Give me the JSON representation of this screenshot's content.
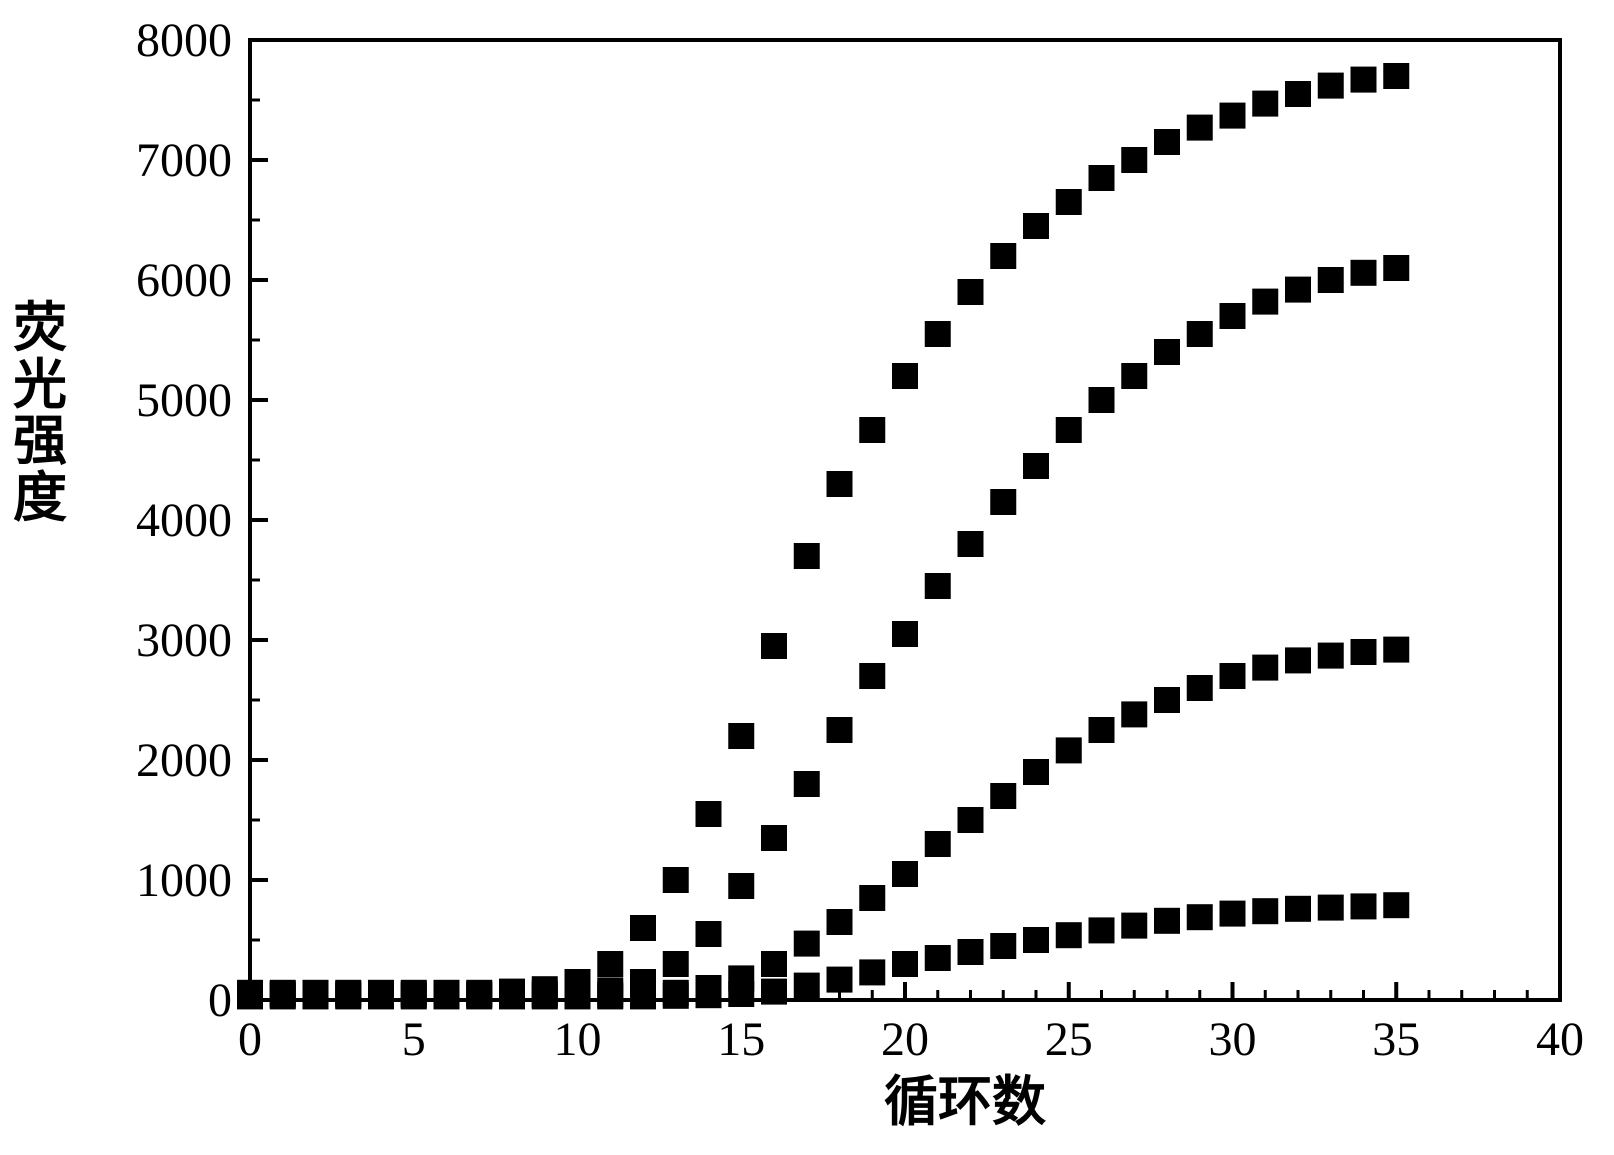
{
  "chart": {
    "type": "scatter",
    "background_color": "#ffffff",
    "plot_border_color": "#000000",
    "plot_border_width": 4,
    "marker": {
      "shape": "square",
      "size": 26,
      "color": "#000000"
    },
    "tick_label_fontsize": 48,
    "axis_title_fontsize": 54,
    "x": {
      "label": "循环数",
      "lim": [
        0,
        40
      ],
      "major_tick_step": 5,
      "minor_tick_step": 1,
      "ticks_labeled": [
        0,
        5,
        10,
        15,
        20,
        25,
        30,
        35,
        40
      ]
    },
    "y": {
      "label": "荧光强度",
      "lim": [
        0,
        8000
      ],
      "major_tick_step": 1000,
      "minor_tick_step": 500,
      "ticks_labeled": [
        0,
        1000,
        2000,
        3000,
        4000,
        5000,
        6000,
        7000,
        8000
      ]
    },
    "series": [
      {
        "name": "series-a",
        "color": "#000000",
        "points": [
          [
            0,
            60
          ],
          [
            1,
            60
          ],
          [
            2,
            60
          ],
          [
            3,
            60
          ],
          [
            4,
            60
          ],
          [
            5,
            60
          ],
          [
            6,
            60
          ],
          [
            7,
            60
          ],
          [
            8,
            70
          ],
          [
            9,
            90
          ],
          [
            10,
            150
          ],
          [
            11,
            300
          ],
          [
            12,
            600
          ],
          [
            13,
            1000
          ],
          [
            14,
            1550
          ],
          [
            15,
            2200
          ],
          [
            16,
            2950
          ],
          [
            17,
            3700
          ],
          [
            18,
            4300
          ],
          [
            19,
            4750
          ],
          [
            20,
            5200
          ],
          [
            21,
            5550
          ],
          [
            22,
            5900
          ],
          [
            23,
            6200
          ],
          [
            24,
            6450
          ],
          [
            25,
            6650
          ],
          [
            26,
            6850
          ],
          [
            27,
            7000
          ],
          [
            28,
            7150
          ],
          [
            29,
            7270
          ],
          [
            30,
            7370
          ],
          [
            31,
            7470
          ],
          [
            32,
            7550
          ],
          [
            33,
            7620
          ],
          [
            34,
            7670
          ],
          [
            35,
            7700
          ]
        ]
      },
      {
        "name": "series-b",
        "color": "#000000",
        "points": [
          [
            0,
            50
          ],
          [
            1,
            50
          ],
          [
            2,
            50
          ],
          [
            3,
            50
          ],
          [
            4,
            50
          ],
          [
            5,
            50
          ],
          [
            6,
            50
          ],
          [
            7,
            50
          ],
          [
            8,
            50
          ],
          [
            9,
            55
          ],
          [
            10,
            60
          ],
          [
            11,
            80
          ],
          [
            12,
            150
          ],
          [
            13,
            300
          ],
          [
            14,
            550
          ],
          [
            15,
            950
          ],
          [
            16,
            1350
          ],
          [
            17,
            1800
          ],
          [
            18,
            2250
          ],
          [
            19,
            2700
          ],
          [
            20,
            3050
          ],
          [
            21,
            3450
          ],
          [
            22,
            3800
          ],
          [
            23,
            4150
          ],
          [
            24,
            4450
          ],
          [
            25,
            4750
          ],
          [
            26,
            5000
          ],
          [
            27,
            5200
          ],
          [
            28,
            5400
          ],
          [
            29,
            5550
          ],
          [
            30,
            5700
          ],
          [
            31,
            5820
          ],
          [
            32,
            5920
          ],
          [
            33,
            6000
          ],
          [
            34,
            6060
          ],
          [
            35,
            6100
          ]
        ]
      },
      {
        "name": "series-c",
        "color": "#000000",
        "points": [
          [
            0,
            40
          ],
          [
            1,
            40
          ],
          [
            2,
            40
          ],
          [
            3,
            40
          ],
          [
            4,
            40
          ],
          [
            5,
            40
          ],
          [
            6,
            40
          ],
          [
            7,
            40
          ],
          [
            8,
            40
          ],
          [
            9,
            40
          ],
          [
            10,
            40
          ],
          [
            11,
            45
          ],
          [
            12,
            50
          ],
          [
            13,
            60
          ],
          [
            14,
            100
          ],
          [
            15,
            180
          ],
          [
            16,
            300
          ],
          [
            17,
            470
          ],
          [
            18,
            650
          ],
          [
            19,
            850
          ],
          [
            20,
            1050
          ],
          [
            21,
            1300
          ],
          [
            22,
            1500
          ],
          [
            23,
            1700
          ],
          [
            24,
            1900
          ],
          [
            25,
            2080
          ],
          [
            26,
            2250
          ],
          [
            27,
            2380
          ],
          [
            28,
            2500
          ],
          [
            29,
            2600
          ],
          [
            30,
            2700
          ],
          [
            31,
            2770
          ],
          [
            32,
            2830
          ],
          [
            33,
            2870
          ],
          [
            34,
            2900
          ],
          [
            35,
            2920
          ]
        ]
      },
      {
        "name": "series-d",
        "color": "#000000",
        "points": [
          [
            0,
            30
          ],
          [
            1,
            30
          ],
          [
            2,
            30
          ],
          [
            3,
            30
          ],
          [
            4,
            30
          ],
          [
            5,
            30
          ],
          [
            6,
            30
          ],
          [
            7,
            30
          ],
          [
            8,
            30
          ],
          [
            9,
            30
          ],
          [
            10,
            30
          ],
          [
            11,
            30
          ],
          [
            12,
            30
          ],
          [
            13,
            35
          ],
          [
            14,
            40
          ],
          [
            15,
            50
          ],
          [
            16,
            70
          ],
          [
            17,
            120
          ],
          [
            18,
            170
          ],
          [
            19,
            230
          ],
          [
            20,
            300
          ],
          [
            21,
            350
          ],
          [
            22,
            400
          ],
          [
            23,
            450
          ],
          [
            24,
            500
          ],
          [
            25,
            540
          ],
          [
            26,
            580
          ],
          [
            27,
            620
          ],
          [
            28,
            660
          ],
          [
            29,
            690
          ],
          [
            30,
            720
          ],
          [
            31,
            740
          ],
          [
            32,
            760
          ],
          [
            33,
            770
          ],
          [
            34,
            780
          ],
          [
            35,
            790
          ]
        ]
      }
    ]
  }
}
